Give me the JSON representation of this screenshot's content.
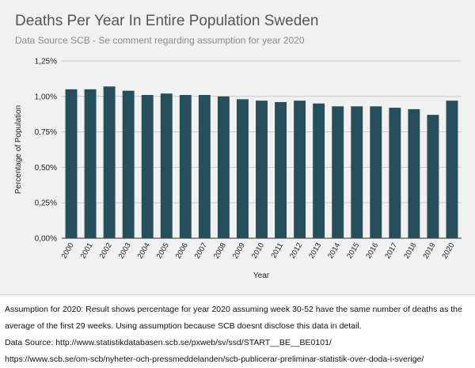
{
  "chart_data": {
    "type": "bar",
    "title": "Deaths Per Year In Entire Population Sweden",
    "subtitle": "Data Source SCB - Se comment regarding assumption for year 2020",
    "xlabel": "Year",
    "ylabel": "Percentage of Population",
    "ylim": [
      0,
      1.25
    ],
    "yticks": [
      "0,00%",
      "0,25%",
      "0,50%",
      "0,75%",
      "1,00%",
      "1,25%"
    ],
    "grid": true,
    "legend": "none",
    "bar_color": "#244f5b",
    "categories": [
      "2000",
      "2001",
      "2002",
      "2003",
      "2004",
      "2005",
      "2006",
      "2007",
      "2008",
      "2009",
      "2010",
      "2011",
      "2012",
      "2013",
      "2014",
      "2015",
      "2016",
      "2017",
      "2018",
      "2019",
      "2020"
    ],
    "values": [
      1.05,
      1.05,
      1.07,
      1.04,
      1.01,
      1.02,
      1.01,
      1.01,
      1.0,
      0.98,
      0.97,
      0.96,
      0.97,
      0.95,
      0.93,
      0.93,
      0.93,
      0.92,
      0.91,
      0.87,
      0.97
    ]
  },
  "notes": {
    "assumption_line1": "Assumption for 2020: Result shows percentage for year 2020 assuming week 30-52 have the same number of deaths as the",
    "assumption_line2": "average of the first 29 weeks. Using assumption because SCB doesnt disclose this data in detail.",
    "source_line": "Data Source: http://www.statistikdatabasen.scb.se/pxweb/sv/ssd/START__BE__BE0101/",
    "url_line": "https://www.scb.se/om-scb/nyheter-och-pressmeddelanden/scb-publicerar-preliminar-statistik-over-doda-i-sverige/"
  }
}
